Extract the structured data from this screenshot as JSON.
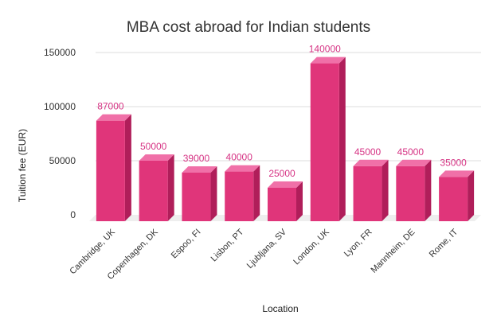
{
  "chart_data": {
    "type": "bar",
    "title": "MBA cost abroad for Indian students",
    "xlabel": "Location",
    "ylabel": "Tuition fee (EUR)",
    "categories": [
      "Cambridge, UK",
      "Copenhagen, DK",
      "Espoo, FI",
      "Lisbon, PT",
      "Ljubljana, SV",
      "London, UK",
      "Lyon, FR",
      "Mannheim, DE",
      "Rome, IT"
    ],
    "values": [
      87000,
      50000,
      39000,
      40000,
      25000,
      140000,
      45000,
      45000,
      35000
    ],
    "yticks": [
      0,
      50000,
      100000,
      150000
    ],
    "ylim": [
      0,
      150000
    ],
    "grid": true,
    "legend": "none",
    "bar_style": "3d",
    "colors": {
      "bar_front": "#e0357a",
      "bar_side": "#b01e5a",
      "bar_top": "#f070a8",
      "data_label": "#d63384",
      "floor": "#eeeeee",
      "grid": "#dddddd",
      "text": "#333333"
    }
  }
}
